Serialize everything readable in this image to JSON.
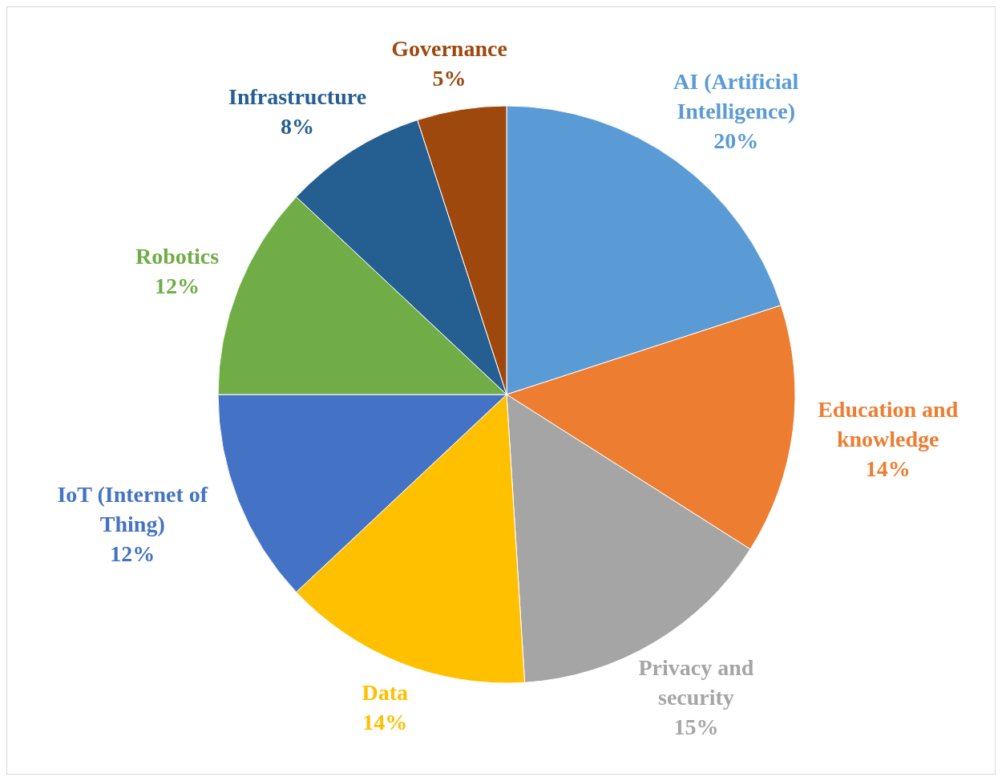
{
  "chart_data": {
    "type": "pie",
    "categories": [
      "AI (Artificial Intelligence)",
      "Education and knowledge",
      "Privacy and security",
      "Data",
      "IoT (Internet of Thing)",
      "Robotics",
      "Infrastructure",
      "Governance"
    ],
    "values": [
      20,
      14,
      15,
      14,
      12,
      12,
      8,
      5
    ],
    "value_labels": [
      "20%",
      "14%",
      "15%",
      "14%",
      "12%",
      "12%",
      "8%",
      "5%"
    ],
    "colors": [
      "#5b9bd5",
      "#ed7d31",
      "#a5a5a5",
      "#ffc000",
      "#4472c4",
      "#70ad47",
      "#255e91",
      "#9e480e"
    ],
    "legend": false
  }
}
